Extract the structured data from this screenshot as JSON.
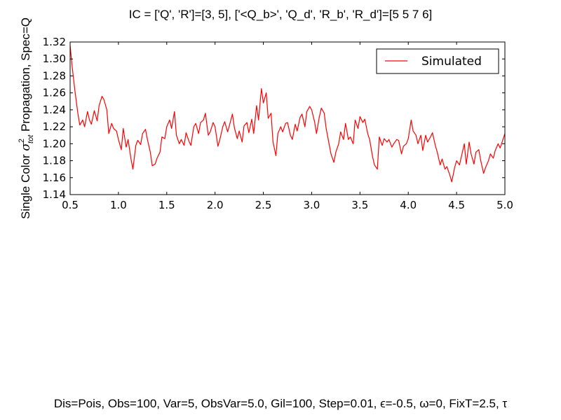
{
  "chart_data": {
    "type": "line",
    "title": "IC = ['Q', 'R']=[3, 5], ['<Q_b>', 'Q_d', 'R_b', 'R_d']=[5 5 7 6]",
    "ylabel": "Single Color σ²tot  Propagation, Spec=Q",
    "ylabel_prefix": "Single Color ",
    "ylabel_sigma": "σ",
    "ylabel_sup": "2",
    "ylabel_sub": "tot",
    "ylabel_suffix": "  Propagation, Spec=Q",
    "xlabel": "",
    "xlim": [
      0.5,
      5.0
    ],
    "ylim": [
      1.14,
      1.32
    ],
    "x_ticks": [
      "0.5",
      "1.0",
      "1.5",
      "2.0",
      "2.5",
      "3.0",
      "3.5",
      "4.0",
      "4.5",
      "5.0"
    ],
    "y_ticks": [
      "1.14",
      "1.16",
      "1.18",
      "1.20",
      "1.22",
      "1.24",
      "1.26",
      "1.28",
      "1.30",
      "1.32"
    ],
    "grid": false,
    "legend_position": "top-right",
    "series": [
      {
        "name": "Simulated",
        "color": "#ff0000",
        "x": [
          0.5,
          0.52,
          0.55,
          0.58,
          0.6,
          0.63,
          0.65,
          0.68,
          0.7,
          0.72,
          0.75,
          0.78,
          0.8,
          0.83,
          0.85,
          0.88,
          0.9,
          0.93,
          0.95,
          0.98,
          1.0,
          1.03,
          1.05,
          1.08,
          1.1,
          1.13,
          1.15,
          1.18,
          1.2,
          1.23,
          1.25,
          1.28,
          1.3,
          1.33,
          1.35,
          1.38,
          1.4,
          1.43,
          1.45,
          1.48,
          1.5,
          1.53,
          1.55,
          1.58,
          1.6,
          1.63,
          1.65,
          1.68,
          1.7,
          1.73,
          1.75,
          1.78,
          1.8,
          1.83,
          1.85,
          1.88,
          1.9,
          1.93,
          1.95,
          1.98,
          2.0,
          2.03,
          2.05,
          2.08,
          2.1,
          2.13,
          2.15,
          2.18,
          2.2,
          2.23,
          2.25,
          2.28,
          2.3,
          2.33,
          2.35,
          2.38,
          2.4,
          2.43,
          2.45,
          2.48,
          2.5,
          2.53,
          2.55,
          2.58,
          2.6,
          2.63,
          2.65,
          2.68,
          2.7,
          2.73,
          2.75,
          2.78,
          2.8,
          2.83,
          2.85,
          2.88,
          2.9,
          2.93,
          2.95,
          2.98,
          3.0,
          3.03,
          3.05,
          3.08,
          3.1,
          3.13,
          3.15,
          3.18,
          3.2,
          3.23,
          3.25,
          3.28,
          3.3,
          3.33,
          3.35,
          3.38,
          3.4,
          3.43,
          3.45,
          3.48,
          3.5,
          3.53,
          3.55,
          3.58,
          3.6,
          3.63,
          3.65,
          3.68,
          3.7,
          3.73,
          3.75,
          3.78,
          3.8,
          3.83,
          3.85,
          3.88,
          3.9,
          3.93,
          3.95,
          3.98,
          4.0,
          4.03,
          4.05,
          4.08,
          4.1,
          4.13,
          4.15,
          4.18,
          4.2,
          4.23,
          4.25,
          4.28,
          4.3,
          4.33,
          4.35,
          4.38,
          4.4,
          4.43,
          4.45,
          4.48,
          4.5,
          4.53,
          4.55,
          4.58,
          4.6,
          4.63,
          4.65,
          4.68,
          4.7,
          4.73,
          4.75,
          4.78,
          4.8,
          4.83,
          4.85,
          4.88,
          4.9,
          4.93,
          4.95,
          4.98,
          5.0
        ],
        "y": [
          1.316,
          1.292,
          1.262,
          1.236,
          1.222,
          1.228,
          1.22,
          1.238,
          1.228,
          1.223,
          1.239,
          1.227,
          1.245,
          1.256,
          1.252,
          1.24,
          1.212,
          1.224,
          1.218,
          1.215,
          1.205,
          1.193,
          1.218,
          1.196,
          1.205,
          1.182,
          1.17,
          1.198,
          1.204,
          1.199,
          1.212,
          1.217,
          1.205,
          1.19,
          1.174,
          1.176,
          1.183,
          1.19,
          1.208,
          1.206,
          1.22,
          1.228,
          1.218,
          1.238,
          1.21,
          1.2,
          1.205,
          1.198,
          1.213,
          1.203,
          1.198,
          1.22,
          1.224,
          1.212,
          1.225,
          1.228,
          1.236,
          1.21,
          1.214,
          1.225,
          1.22,
          1.197,
          1.205,
          1.22,
          1.226,
          1.214,
          1.222,
          1.235,
          1.219,
          1.206,
          1.215,
          1.202,
          1.221,
          1.225,
          1.213,
          1.229,
          1.212,
          1.245,
          1.228,
          1.265,
          1.248,
          1.26,
          1.23,
          1.236,
          1.202,
          1.186,
          1.212,
          1.22,
          1.214,
          1.224,
          1.225,
          1.21,
          1.205,
          1.223,
          1.215,
          1.231,
          1.235,
          1.22,
          1.238,
          1.244,
          1.24,
          1.226,
          1.212,
          1.232,
          1.242,
          1.236,
          1.218,
          1.2,
          1.188,
          1.178,
          1.19,
          1.2,
          1.214,
          1.205,
          1.224,
          1.205,
          1.208,
          1.2,
          1.228,
          1.218,
          1.232,
          1.225,
          1.229,
          1.212,
          1.205,
          1.185,
          1.175,
          1.17,
          1.208,
          1.198,
          1.206,
          1.202,
          1.205,
          1.196,
          1.2,
          1.205,
          1.204,
          1.188,
          1.197,
          1.2,
          1.206,
          1.228,
          1.215,
          1.21,
          1.2,
          1.21,
          1.192,
          1.21,
          1.202,
          1.208,
          1.213,
          1.198,
          1.19,
          1.175,
          1.182,
          1.17,
          1.173,
          1.163,
          1.155,
          1.172,
          1.18,
          1.175,
          1.185,
          1.2,
          1.176,
          1.202,
          1.188,
          1.176,
          1.19,
          1.193,
          1.18,
          1.165,
          1.172,
          1.18,
          1.188,
          1.183,
          1.192,
          1.2,
          1.195,
          1.205,
          1.212
        ]
      }
    ]
  },
  "footer": {
    "text": "Dis=Pois, Obs=100, Var=5, ObsVar=5.0, Gil=100, Step=0.01, ϵ=-0.5, ω=0, FixT=2.5, τ"
  }
}
